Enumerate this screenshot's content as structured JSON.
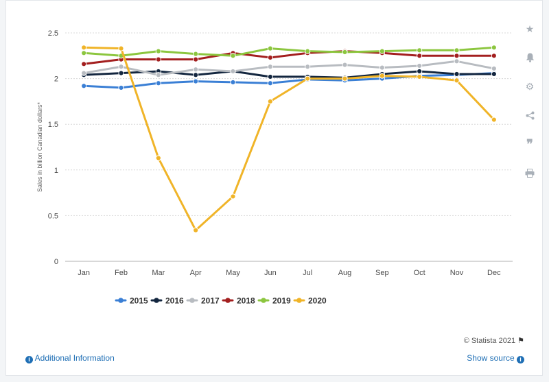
{
  "chart_data": {
    "type": "line",
    "title": "",
    "xlabel": "",
    "ylabel": "Sales in billion Canadian dollars*",
    "categories": [
      "Jan",
      "Feb",
      "Mar",
      "Apr",
      "May",
      "Jun",
      "Jul",
      "Aug",
      "Sep",
      "Oct",
      "Nov",
      "Dec"
    ],
    "ylim": [
      0,
      2.5
    ],
    "yticks": [
      "0",
      "0.5",
      "1",
      "1.5",
      "2",
      "2.5"
    ],
    "grid": true,
    "legend_position": "bottom",
    "series": [
      {
        "name": "2015",
        "color": "#3a7fd5",
        "values": [
          1.92,
          1.9,
          1.95,
          1.97,
          1.96,
          1.95,
          1.99,
          1.98,
          2.0,
          2.03,
          2.04,
          2.06
        ]
      },
      {
        "name": "2016",
        "color": "#13263f",
        "values": [
          2.04,
          2.06,
          2.08,
          2.04,
          2.08,
          2.02,
          2.02,
          2.01,
          2.05,
          2.08,
          2.05,
          2.05
        ]
      },
      {
        "name": "2017",
        "color": "#b8bcc1",
        "values": [
          2.06,
          2.13,
          2.04,
          2.1,
          2.08,
          2.13,
          2.13,
          2.15,
          2.12,
          2.14,
          2.19,
          2.11
        ]
      },
      {
        "name": "2018",
        "color": "#a31f1f",
        "values": [
          2.16,
          2.21,
          2.21,
          2.21,
          2.28,
          2.23,
          2.28,
          2.3,
          2.28,
          2.25,
          2.25,
          2.25
        ]
      },
      {
        "name": "2019",
        "color": "#8cc63f",
        "values": [
          2.28,
          2.25,
          2.3,
          2.27,
          2.25,
          2.33,
          2.3,
          2.29,
          2.3,
          2.31,
          2.31,
          2.34
        ]
      },
      {
        "name": "2020",
        "color": "#f0b428",
        "values": [
          2.34,
          2.33,
          1.13,
          0.34,
          0.71,
          1.75,
          2.0,
          2.0,
          2.03,
          2.02,
          1.98,
          1.55
        ]
      }
    ]
  },
  "toolbar": {
    "icons": [
      "star-icon",
      "bell-icon",
      "gear-icon",
      "share-icon",
      "quote-icon",
      "print-icon"
    ]
  },
  "footer": {
    "credit": "© Statista 2021",
    "additional_info": "Additional Information",
    "show_source": "Show source"
  }
}
